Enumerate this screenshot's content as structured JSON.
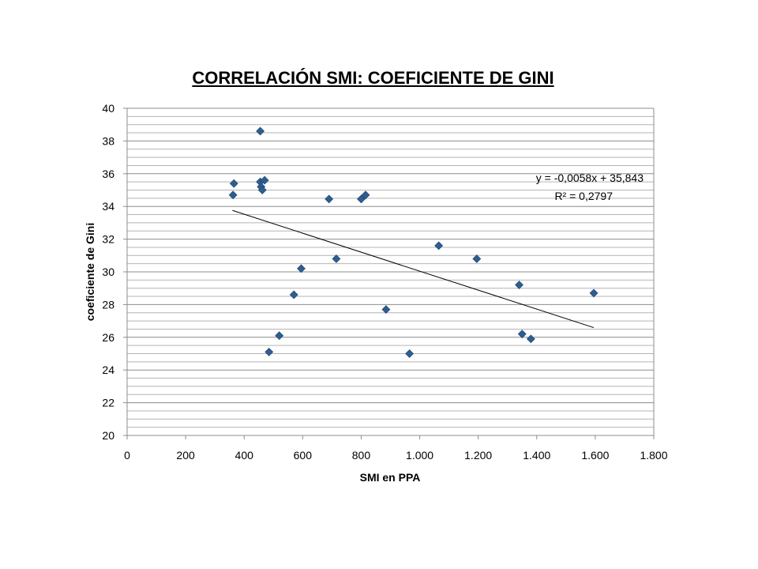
{
  "chart_data": {
    "type": "scatter",
    "title": "CORRELACIÓN SMI: COEFICIENTE DE GINI",
    "xlabel": "SMI en PPA",
    "ylabel": "coeficiente de Gini",
    "xlim": [
      0,
      1800
    ],
    "ylim": [
      20,
      40
    ],
    "x_ticks": [
      0,
      200,
      400,
      600,
      800,
      1000,
      1200,
      1400,
      1600,
      1800
    ],
    "x_tick_labels": [
      "0",
      "200",
      "400",
      "600",
      "800",
      "1.000",
      "1.200",
      "1.400",
      "1.600",
      "1.800"
    ],
    "y_ticks": [
      20,
      22,
      24,
      26,
      28,
      30,
      32,
      34,
      36,
      38,
      40
    ],
    "y_tick_labels": [
      "20",
      "22",
      "24",
      "26",
      "28",
      "30",
      "32",
      "34",
      "36",
      "38",
      "40"
    ],
    "grid": true,
    "marker_color": "#2e5d8e",
    "points": [
      {
        "x": 455,
        "y": 38.6
      },
      {
        "x": 365,
        "y": 35.4
      },
      {
        "x": 362,
        "y": 34.7
      },
      {
        "x": 455,
        "y": 35.5
      },
      {
        "x": 470,
        "y": 35.6
      },
      {
        "x": 458,
        "y": 35.2
      },
      {
        "x": 462,
        "y": 35.0
      },
      {
        "x": 690,
        "y": 34.45
      },
      {
        "x": 800,
        "y": 34.45
      },
      {
        "x": 815,
        "y": 34.7
      },
      {
        "x": 595,
        "y": 30.2
      },
      {
        "x": 715,
        "y": 30.8
      },
      {
        "x": 570,
        "y": 28.6
      },
      {
        "x": 520,
        "y": 26.1
      },
      {
        "x": 485,
        "y": 25.1
      },
      {
        "x": 885,
        "y": 27.7
      },
      {
        "x": 965,
        "y": 25.0
      },
      {
        "x": 1065,
        "y": 31.6
      },
      {
        "x": 1195,
        "y": 30.8
      },
      {
        "x": 1340,
        "y": 29.2
      },
      {
        "x": 1350,
        "y": 26.2
      },
      {
        "x": 1380,
        "y": 25.9
      },
      {
        "x": 1595,
        "y": 28.7
      }
    ],
    "trendline": {
      "slope": -0.0058,
      "intercept": 35.843,
      "x_range": [
        360,
        1595
      ],
      "equation": "y = -0,0058x + 35,843",
      "r2": "R² = 0,2797"
    }
  }
}
